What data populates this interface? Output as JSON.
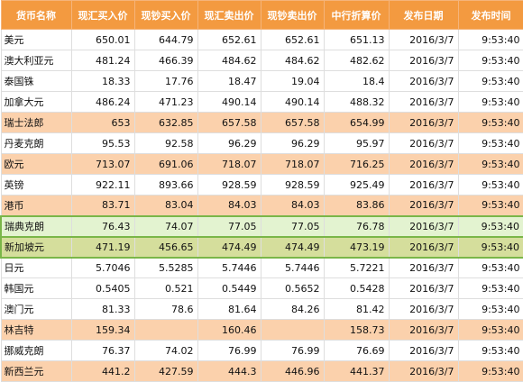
{
  "headers": [
    "货币名称",
    "现汇买入价",
    "现钞买入价",
    "现汇卖出价",
    "现钞卖出价",
    "中行折算价",
    "发布日期",
    "发布时间"
  ],
  "rows": [
    {
      "currency": "美元",
      "cells": [
        "650.01",
        "644.79",
        "652.61",
        "652.61",
        "651.13",
        "2016/3/7",
        "9:53:40"
      ],
      "style": "white"
    },
    {
      "currency": "澳大利亚元",
      "cells": [
        "481.24",
        "466.39",
        "484.62",
        "484.62",
        "482.62",
        "2016/3/7",
        "9:53:40"
      ],
      "style": "white"
    },
    {
      "currency": "泰国铢",
      "cells": [
        "18.33",
        "17.76",
        "18.47",
        "19.04",
        "18.4",
        "2016/3/7",
        "9:53:40"
      ],
      "style": "white"
    },
    {
      "currency": "加拿大元",
      "cells": [
        "486.24",
        "471.23",
        "490.14",
        "490.14",
        "488.32",
        "2016/3/7",
        "9:53:40"
      ],
      "style": "white"
    },
    {
      "currency": "瑞士法郎",
      "cells": [
        "653",
        "632.85",
        "657.58",
        "657.58",
        "654.99",
        "2016/3/7",
        "9:53:40"
      ],
      "style": "orange"
    },
    {
      "currency": "丹麦克朗",
      "cells": [
        "95.53",
        "92.58",
        "96.29",
        "96.29",
        "95.97",
        "2016/3/7",
        "9:53:40"
      ],
      "style": "white"
    },
    {
      "currency": "欧元",
      "cells": [
        "713.07",
        "691.06",
        "718.07",
        "718.07",
        "716.25",
        "2016/3/7",
        "9:53:40"
      ],
      "style": "orange"
    },
    {
      "currency": "英镑",
      "cells": [
        "922.11",
        "893.66",
        "928.59",
        "928.59",
        "925.49",
        "2016/3/7",
        "9:53:40"
      ],
      "style": "white"
    },
    {
      "currency": "港币",
      "cells": [
        "83.71",
        "83.04",
        "84.03",
        "84.03",
        "83.86",
        "2016/3/7",
        "9:53:40"
      ],
      "style": "orange"
    },
    {
      "currency": "瑞典克朗",
      "cells": [
        "76.43",
        "74.07",
        "77.05",
        "77.05",
        "76.78",
        "2016/3/7",
        "9:53:40"
      ],
      "style": "light-green"
    },
    {
      "currency": "新加坡元",
      "cells": [
        "471.19",
        "456.65",
        "474.49",
        "474.49",
        "473.19",
        "2016/3/7",
        "9:53:40"
      ],
      "style": "olive"
    },
    {
      "currency": "日元",
      "cells": [
        "5.7046",
        "5.5285",
        "5.7446",
        "5.7446",
        "5.7221",
        "2016/3/7",
        "9:53:40"
      ],
      "style": "white"
    },
    {
      "currency": "韩国元",
      "cells": [
        "0.5405",
        "0.521",
        "0.5449",
        "0.5652",
        "0.5428",
        "2016/3/7",
        "9:53:40"
      ],
      "style": "white"
    },
    {
      "currency": "澳门元",
      "cells": [
        "81.33",
        "78.6",
        "81.64",
        "84.26",
        "81.42",
        "2016/3/7",
        "9:53:40"
      ],
      "style": "white"
    },
    {
      "currency": "林吉特",
      "cells": [
        "159.34",
        "",
        "160.46",
        "",
        "158.73",
        "2016/3/7",
        "9:53:40"
      ],
      "style": "orange"
    },
    {
      "currency": "挪威克朗",
      "cells": [
        "76.37",
        "74.02",
        "76.99",
        "76.99",
        "76.69",
        "2016/3/7",
        "9:53:40"
      ],
      "style": "white"
    },
    {
      "currency": "新西兰元",
      "cells": [
        "441.2",
        "427.59",
        "444.3",
        "446.96",
        "441.37",
        "2016/3/7",
        "9:53:40"
      ],
      "style": "orange"
    }
  ]
}
